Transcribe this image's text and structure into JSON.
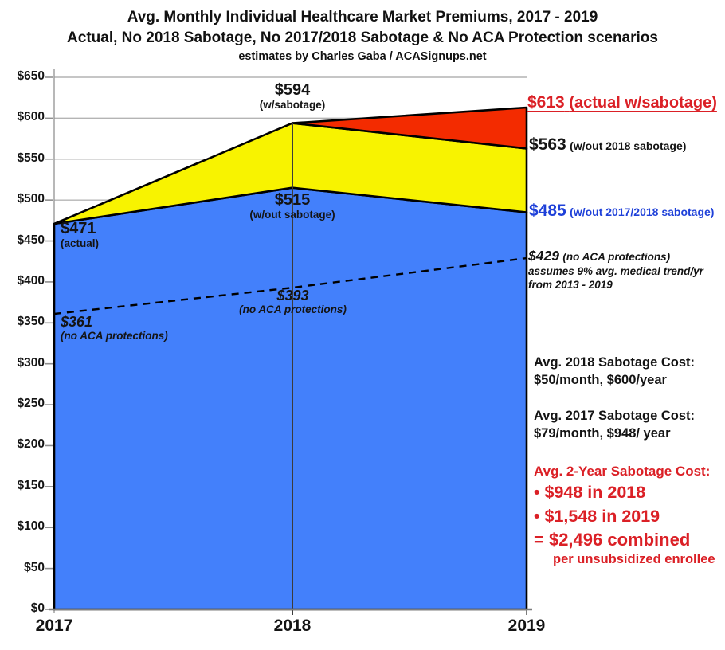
{
  "header": {
    "title": "Avg. Monthly Individual Healthcare Market Premiums, 2017 - 2019",
    "subtitle": "Actual, No 2018 Sabotage, No 2017/2018 Sabotage & No ACA Protection scenarios",
    "credit": "estimates by Charles Gaba / ACASignups.net"
  },
  "chart_data": {
    "type": "area",
    "title": "Avg. Monthly Individual Healthcare Market Premiums, 2017 - 2019",
    "x": [
      2017,
      2018,
      2019
    ],
    "xticks": [
      "2017",
      "2018",
      "2019"
    ],
    "series": [
      {
        "name": "Actual (w/sabotage)",
        "values": [
          471,
          594,
          613
        ],
        "fill": "#f32b00"
      },
      {
        "name": "No 2018 sabotage (w/out 2018 sabotage)",
        "values": [
          471,
          594,
          563
        ],
        "fill": "#f8f300"
      },
      {
        "name": "No 2017/2018 sabotage (w/out 2017/2018 sabotage)",
        "values": [
          471,
          515,
          485
        ],
        "fill": "#4380fb"
      },
      {
        "name": "No ACA protections",
        "values": [
          361,
          393,
          429
        ],
        "line_style": "dashed"
      }
    ],
    "ylim": [
      0,
      650
    ],
    "ytick_interval": 50,
    "yticks": [
      "$0",
      "$50",
      "$100",
      "$150",
      "$200",
      "$250",
      "$300",
      "$350",
      "$400",
      "$450",
      "$500",
      "$550",
      "$600",
      "$650"
    ],
    "grid": true,
    "legend": "none"
  },
  "annotations": {
    "peak2018": {
      "value": "$594",
      "label": "(w/sabotage)"
    },
    "actual2019": {
      "value": "$613",
      "label": "(actual w/sabotage)"
    },
    "no2018sab2019": {
      "value": "$563",
      "label": "(w/out 2018 sabotage)"
    },
    "no1718sab2019": {
      "value": "$485",
      "label": "(w/out 2017/2018 sabotage)"
    },
    "start2017": {
      "value": "$471",
      "label": "(actual)"
    },
    "mid2018": {
      "value": "$515",
      "label": "(w/out sabotage)"
    },
    "noaca2019": {
      "value": "$429",
      "label": "(no ACA protections)",
      "line2": "assumes 9% avg. medical trend/yr",
      "line3": "from 2013 - 2019"
    },
    "noaca2018": {
      "value": "$393",
      "label": "(no ACA protections)"
    },
    "noaca2017": {
      "value": "$361",
      "label": "(no ACA protections)"
    }
  },
  "cost_panel": {
    "cost_2018": {
      "title": "Avg. 2018 Sabotage Cost:",
      "detail": "$50/month, $600/year"
    },
    "cost_2017": {
      "title": "Avg. 2017 Sabotage Cost:",
      "detail": "$79/month, $948/ year"
    },
    "two_year": {
      "title": "Avg. 2-Year Sabotage Cost:",
      "item_2018": "• $948 in 2018",
      "item_2019": "• $1,548 in 2019",
      "total": "= $2,496 combined",
      "footnote": "per unsubsidized enrollee"
    }
  },
  "colors": {
    "red_fill": "#f32b00",
    "yellow_fill": "#f8f300",
    "blue_fill": "#4380fb",
    "red_text": "#db2026",
    "blue_text": "#1f41d9",
    "gridline": "#b4b4b4",
    "stroke": "#000000"
  }
}
